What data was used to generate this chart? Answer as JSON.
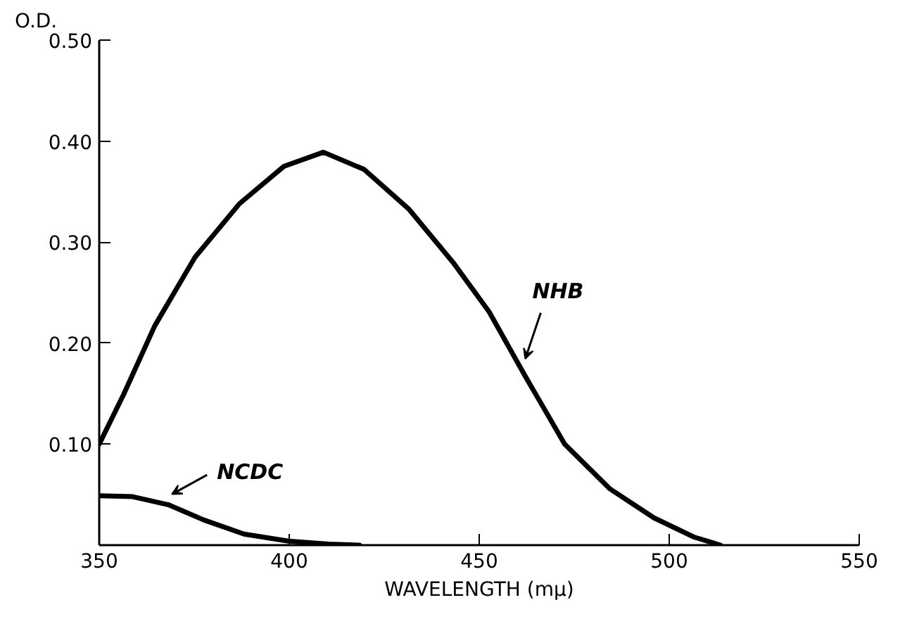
{
  "chart_data": {
    "type": "line",
    "xlabel": "WAVELENGTH (mμ)",
    "ylabel": "O.D.",
    "xlim": [
      350,
      550
    ],
    "xticks": [
      350,
      400,
      450,
      500,
      550
    ],
    "ylim": [
      0,
      0.5
    ],
    "yticks": [
      {
        "value": 0.1,
        "label": "0.10"
      },
      {
        "value": 0.2,
        "label": "0.20"
      },
      {
        "value": 0.3,
        "label": "0.30"
      },
      {
        "value": 0.4,
        "label": "0.40"
      },
      {
        "value": 0.5,
        "label": "0.50"
      }
    ],
    "grid": false,
    "marker": "none",
    "line_style": "solid",
    "series": [
      {
        "color": "#000000",
        "x": [
          350,
          356.4,
          364.6,
          375.2,
          386.9,
          398.6,
          409,
          419.7,
          431.4,
          443.1,
          452.6,
          462,
          472.5,
          484.3,
          496,
          506.5,
          513.5
        ],
        "values": [
          0.1,
          0.149,
          0.217,
          0.285,
          0.338,
          0.375,
          0.389,
          0.372,
          0.333,
          0.28,
          0.231,
          0.168,
          0.1,
          0.056,
          0.027,
          0.008,
          0.0
        ]
      },
      {
        "color": "#000000",
        "x": [
          350,
          358.8,
          368.2,
          377.5,
          388.1,
          399.8,
          410.3,
          418.5
        ],
        "values": [
          0.049,
          0.048,
          0.04,
          0.025,
          0.011,
          0.004,
          0.001,
          0.0
        ]
      }
    ],
    "annotations": [
      {
        "text": "NHB",
        "x": 461,
        "y": 0.18
      },
      {
        "text": "NCDC",
        "x": 368,
        "y": 0.046
      }
    ]
  }
}
